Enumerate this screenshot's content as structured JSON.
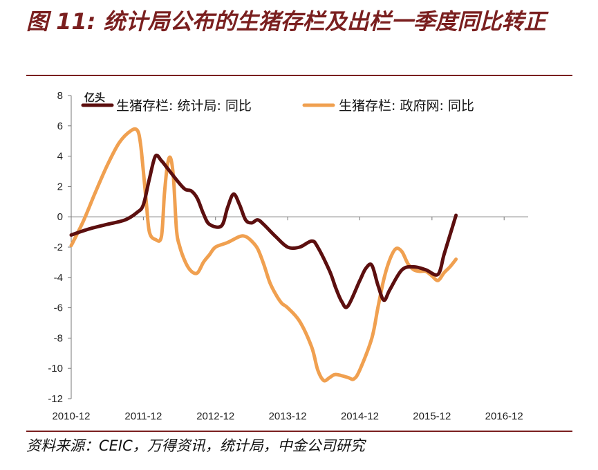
{
  "header": {
    "title": "图 11: 统计局公布的生猪存栏及出栏一季度同比转正"
  },
  "footer": {
    "source": "资料来源：CEIC，万得资讯，统计局，中金公司研究"
  },
  "chart_data": {
    "type": "line",
    "unit_label": "亿头",
    "ylim": [
      -12,
      8
    ],
    "yticks": [
      8,
      6,
      4,
      2,
      0,
      -2,
      -4,
      -6,
      -8,
      -10,
      -12
    ],
    "x_tick_labels": [
      "2010-12",
      "2011-12",
      "2012-12",
      "2013-12",
      "2014-12",
      "2015-12",
      "2016-12"
    ],
    "xlim": [
      0,
      76
    ],
    "legend_position": "top",
    "series": [
      {
        "name": "生猪存栏: 统计局: 同比",
        "color": "#5c0f0f",
        "points": [
          [
            0,
            -1.2
          ],
          [
            3,
            -0.8
          ],
          [
            6,
            -0.5
          ],
          [
            9,
            -0.2
          ],
          [
            11,
            0.3
          ],
          [
            12,
            0.8
          ],
          [
            13,
            2.5
          ],
          [
            14,
            4.0
          ],
          [
            15,
            3.7
          ],
          [
            16,
            3.2
          ],
          [
            18,
            2.2
          ],
          [
            19,
            1.8
          ],
          [
            20,
            1.7
          ],
          [
            21,
            1.2
          ],
          [
            22,
            0.2
          ],
          [
            23,
            -0.5
          ],
          [
            25,
            -0.6
          ],
          [
            26,
            0.6
          ],
          [
            27,
            1.5
          ],
          [
            28,
            0.8
          ],
          [
            29,
            -0.2
          ],
          [
            30,
            -0.4
          ],
          [
            31,
            -0.2
          ],
          [
            32,
            -0.5
          ],
          [
            34,
            -1.3
          ],
          [
            36,
            -2.0
          ],
          [
            38,
            -2.0
          ],
          [
            40,
            -1.6
          ],
          [
            41,
            -2.0
          ],
          [
            43,
            -3.6
          ],
          [
            44,
            -4.7
          ],
          [
            45,
            -5.6
          ],
          [
            46,
            -5.9
          ],
          [
            48,
            -4.2
          ],
          [
            49,
            -3.4
          ],
          [
            50,
            -3.2
          ],
          [
            51,
            -4.5
          ],
          [
            52,
            -5.5
          ],
          [
            53,
            -4.8
          ],
          [
            55,
            -3.5
          ],
          [
            57,
            -3.3
          ],
          [
            59,
            -3.5
          ],
          [
            61,
            -3.8
          ],
          [
            62,
            -2.5
          ],
          [
            63,
            -1.2
          ],
          [
            64,
            0.1
          ]
        ]
      },
      {
        "name": "生猪存栏:  政府网:  同比",
        "color": "#f0a050",
        "points": [
          [
            0,
            -1.9
          ],
          [
            2,
            -0.3
          ],
          [
            4,
            1.6
          ],
          [
            6,
            3.4
          ],
          [
            8,
            4.9
          ],
          [
            10,
            5.7
          ],
          [
            11,
            5.7
          ],
          [
            11.5,
            4.9
          ],
          [
            12,
            3.0
          ],
          [
            12.5,
            0.9
          ],
          [
            13,
            -1.0
          ],
          [
            14,
            -1.5
          ],
          [
            15,
            -1.3
          ],
          [
            15.5,
            1.5
          ],
          [
            16,
            3.4
          ],
          [
            16.5,
            3.9
          ],
          [
            17,
            2.6
          ],
          [
            17.5,
            -0.8
          ],
          [
            18,
            -1.9
          ],
          [
            19,
            -3.0
          ],
          [
            20,
            -3.6
          ],
          [
            21,
            -3.7
          ],
          [
            22,
            -3.0
          ],
          [
            23,
            -2.5
          ],
          [
            24,
            -2.0
          ],
          [
            26,
            -1.7
          ],
          [
            28,
            -1.3
          ],
          [
            29,
            -1.3
          ],
          [
            30,
            -1.6
          ],
          [
            31,
            -2.1
          ],
          [
            32,
            -3.1
          ],
          [
            33,
            -4.3
          ],
          [
            34,
            -5.1
          ],
          [
            35,
            -5.7
          ],
          [
            36,
            -6.0
          ],
          [
            38,
            -6.9
          ],
          [
            40,
            -8.6
          ],
          [
            41,
            -10.1
          ],
          [
            42,
            -10.8
          ],
          [
            43,
            -10.6
          ],
          [
            44,
            -10.4
          ],
          [
            46,
            -10.6
          ],
          [
            47,
            -10.7
          ],
          [
            48,
            -10.1
          ],
          [
            50,
            -8.0
          ],
          [
            51,
            -6.0
          ],
          [
            52,
            -4.1
          ],
          [
            53,
            -2.8
          ],
          [
            54,
            -2.1
          ],
          [
            55,
            -2.3
          ],
          [
            56,
            -3.1
          ],
          [
            57,
            -3.5
          ],
          [
            58,
            -3.6
          ],
          [
            59,
            -3.6
          ],
          [
            60,
            -3.9
          ],
          [
            61,
            -4.2
          ],
          [
            62,
            -3.7
          ],
          [
            63,
            -3.3
          ],
          [
            64,
            -2.8
          ]
        ]
      }
    ]
  }
}
